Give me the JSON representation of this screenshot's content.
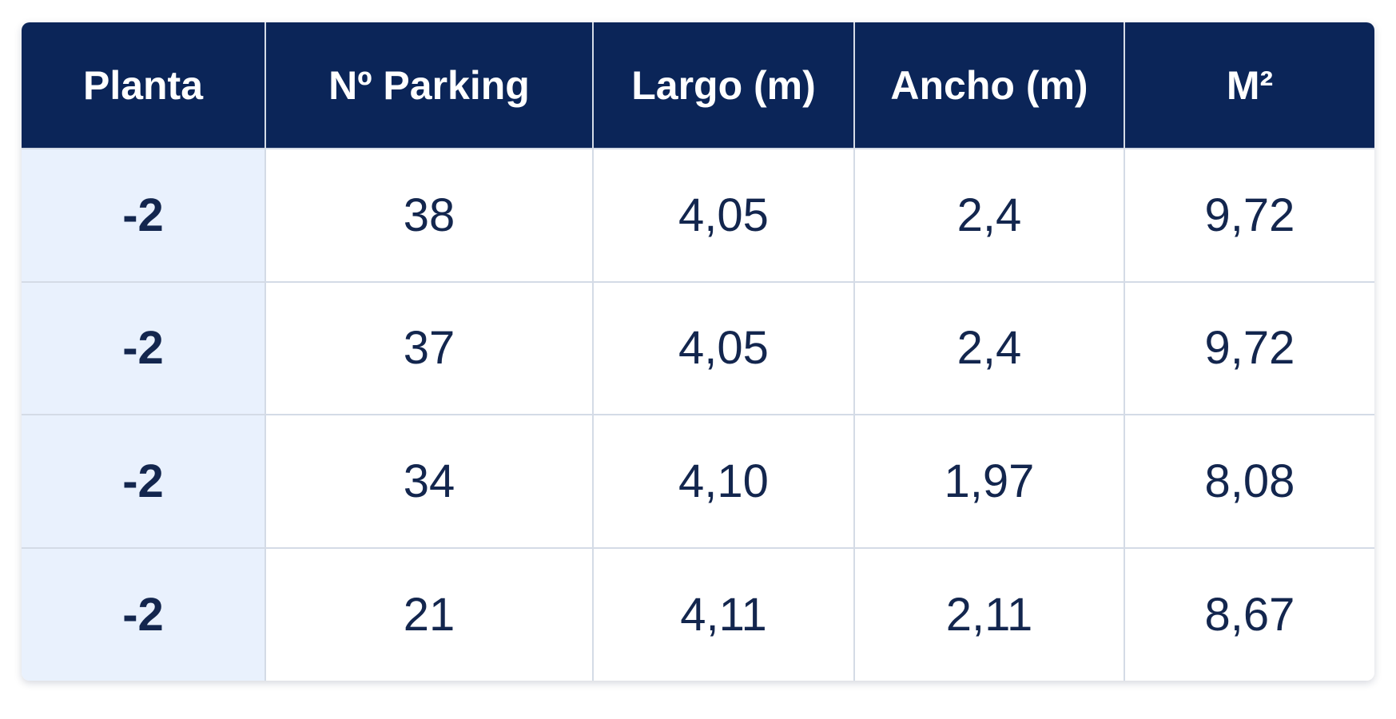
{
  "table": {
    "headers": [
      "Planta",
      "Nº Parking",
      "Largo (m)",
      "Ancho (m)",
      "M²"
    ],
    "rows": [
      [
        "-2",
        "38",
        "4,05",
        "2,4",
        "9,72"
      ],
      [
        "-2",
        "37",
        "4,05",
        "2,4",
        "9,72"
      ],
      [
        "-2",
        "34",
        "4,10",
        "1,97",
        "8,08"
      ],
      [
        "-2",
        "21",
        "4,11",
        "2,11",
        "8,67"
      ]
    ]
  },
  "colors": {
    "header_background": "#0b2558",
    "header_text": "#ffffff",
    "cell_text": "#13264e",
    "first_column_background": "#e9f1fd",
    "grid_line": "#d4dbe6"
  }
}
